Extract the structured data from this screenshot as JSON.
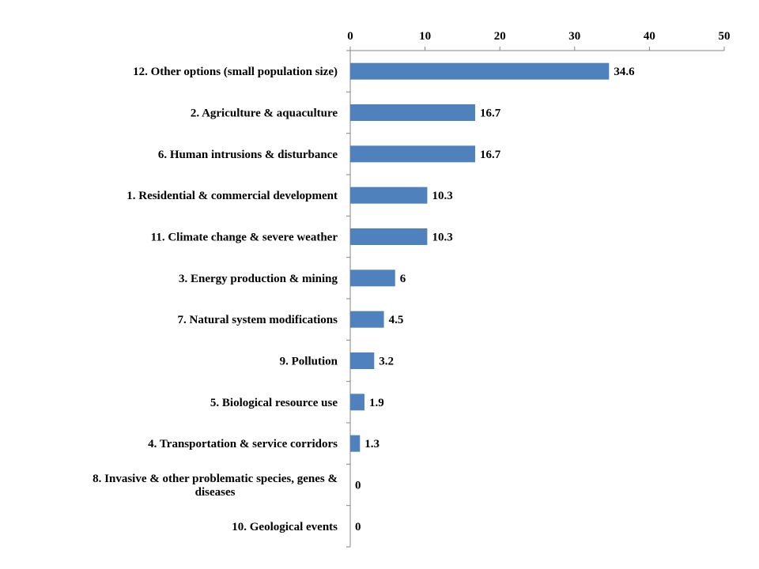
{
  "chart_data": {
    "type": "bar",
    "orientation": "horizontal",
    "title": "",
    "xlabel": "",
    "ylabel": "",
    "xlim": [
      0,
      50
    ],
    "x_ticks": [
      0,
      10,
      20,
      30,
      40,
      50
    ],
    "x_axis_position": "top",
    "grid": false,
    "legend": "none",
    "bar_color": "#4f81bd",
    "data_labels": true,
    "categories": [
      [
        "12. Other options (small population size)"
      ],
      [
        "2. Agriculture & aquaculture"
      ],
      [
        "6. Human intrusions & disturbance"
      ],
      [
        "1. Residential & commercial development"
      ],
      [
        "11. Climate change & severe weather"
      ],
      [
        "3. Energy production & mining"
      ],
      [
        "7. Natural system modifications"
      ],
      [
        "9. Pollution"
      ],
      [
        "5. Biological resource use"
      ],
      [
        "4. Transportation & service corridors"
      ],
      [
        "8. Invasive & other problematic species, genes &",
        "diseases"
      ],
      [
        "10. Geological events"
      ]
    ],
    "values": [
      34.6,
      16.7,
      16.7,
      10.3,
      10.3,
      6,
      4.5,
      3.2,
      1.9,
      1.3,
      0,
      0
    ]
  }
}
